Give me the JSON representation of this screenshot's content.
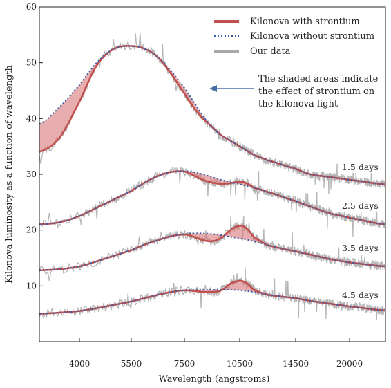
{
  "chart_data": {
    "type": "line",
    "xlabel": "Wavelength (angstroms)",
    "ylabel": "Kilonova luminosity as a function of wavelength",
    "ylim": [
      0,
      60
    ],
    "y_ticks": [
      10,
      20,
      30,
      40,
      50,
      60
    ],
    "x_tick_labels": [
      "4000",
      "5500",
      "7500",
      "10500",
      "14500",
      "20000"
    ],
    "x_tick_values": [
      4000,
      5500,
      7500,
      10500,
      14500,
      20000
    ],
    "x_anchor_values": [
      3200,
      4000,
      5500,
      7500,
      10500,
      14500,
      20000,
      23000
    ],
    "x_range": [
      3200,
      23000
    ],
    "grid": false,
    "legend_position": "top-right",
    "legend": [
      {
        "label": "Kilonova with strontium",
        "color": "#c0504d",
        "style": "solid"
      },
      {
        "label": "Kilonova without strontium",
        "color": "#3b5ca8",
        "style": "dotted"
      },
      {
        "label": "Our data",
        "color": "#a9a9a9",
        "style": "solid"
      }
    ],
    "annotation": {
      "lines": [
        "The shaded areas indicate",
        "the effect of strontium on",
        "the kilonova light"
      ],
      "arrow_color": "#4a6fa5"
    },
    "series_style": {
      "with_color": "#c0504d",
      "without_color": "#3b5ca8",
      "data_color": "#a9a9a9",
      "shade_color": "#d9787a"
    },
    "epochs": [
      {
        "label": "1.5 days",
        "without": [
          [
            3200,
            39
          ],
          [
            3600,
            42
          ],
          [
            4000,
            46
          ],
          [
            4500,
            50
          ],
          [
            5000,
            52.5
          ],
          [
            5500,
            53
          ],
          [
            6000,
            52.5
          ],
          [
            6500,
            51
          ],
          [
            7000,
            48.5
          ],
          [
            7500,
            45.5
          ],
          [
            8000,
            43
          ],
          [
            8500,
            40.5
          ],
          [
            9000,
            38.5
          ],
          [
            9500,
            37
          ],
          [
            10000,
            36
          ],
          [
            10500,
            35
          ],
          [
            11500,
            33.5
          ],
          [
            12500,
            32.5
          ],
          [
            14500,
            31
          ],
          [
            16000,
            30
          ],
          [
            18000,
            29.5
          ],
          [
            20000,
            29
          ],
          [
            23000,
            28.2
          ]
        ],
        "with": [
          [
            3200,
            34
          ],
          [
            3600,
            36.5
          ],
          [
            4000,
            43
          ],
          [
            4500,
            49.5
          ],
          [
            5000,
            52.5
          ],
          [
            5500,
            53
          ],
          [
            6000,
            52.5
          ],
          [
            6500,
            51
          ],
          [
            7000,
            48
          ],
          [
            7500,
            44.5
          ],
          [
            8000,
            42
          ],
          [
            8500,
            40
          ],
          [
            9000,
            38.5
          ],
          [
            9500,
            37
          ],
          [
            10000,
            36
          ],
          [
            10500,
            35
          ],
          [
            11500,
            33.5
          ],
          [
            12500,
            32.5
          ],
          [
            14500,
            31
          ],
          [
            16000,
            30
          ],
          [
            18000,
            29.5
          ],
          [
            20000,
            29
          ],
          [
            23000,
            28.2
          ]
        ]
      },
      {
        "label": "2.5 days",
        "without": [
          [
            3200,
            21
          ],
          [
            3600,
            21.4
          ],
          [
            4000,
            22.5
          ],
          [
            4500,
            24
          ],
          [
            5000,
            25.5
          ],
          [
            5500,
            27
          ],
          [
            6000,
            28.5
          ],
          [
            6500,
            29.7
          ],
          [
            7000,
            30.4
          ],
          [
            7500,
            30.6
          ],
          [
            8000,
            30.4
          ],
          [
            8500,
            30
          ],
          [
            9000,
            29.5
          ],
          [
            9500,
            29
          ],
          [
            10000,
            28.6
          ],
          [
            10500,
            28.2
          ],
          [
            11500,
            27.6
          ],
          [
            12500,
            26.8
          ],
          [
            14500,
            25.2
          ],
          [
            16000,
            24.2
          ],
          [
            18000,
            23
          ],
          [
            20000,
            22.2
          ],
          [
            23000,
            21
          ]
        ],
        "with": [
          [
            3200,
            21
          ],
          [
            3600,
            21.4
          ],
          [
            4000,
            22.5
          ],
          [
            4500,
            24
          ],
          [
            5000,
            25.5
          ],
          [
            5500,
            27
          ],
          [
            6000,
            28.5
          ],
          [
            6500,
            29.7
          ],
          [
            7000,
            30.4
          ],
          [
            7500,
            30.5
          ],
          [
            8000,
            29.8
          ],
          [
            8500,
            29
          ],
          [
            9000,
            28.5
          ],
          [
            9500,
            28.3
          ],
          [
            10000,
            28.4
          ],
          [
            10500,
            28.7
          ],
          [
            11000,
            28.4
          ],
          [
            11500,
            27.6
          ],
          [
            12500,
            26.8
          ],
          [
            14500,
            25.2
          ],
          [
            16000,
            24.2
          ],
          [
            18000,
            23
          ],
          [
            20000,
            22.2
          ],
          [
            23000,
            21
          ]
        ]
      },
      {
        "label": "3.5 days",
        "without": [
          [
            3200,
            12.8
          ],
          [
            3600,
            13
          ],
          [
            4000,
            13.5
          ],
          [
            4500,
            14.4
          ],
          [
            5000,
            15.4
          ],
          [
            5500,
            16.4
          ],
          [
            6000,
            17.4
          ],
          [
            6500,
            18.2
          ],
          [
            7000,
            18.9
          ],
          [
            7500,
            19.3
          ],
          [
            8000,
            19.4
          ],
          [
            8500,
            19.4
          ],
          [
            9000,
            19.3
          ],
          [
            9500,
            19.1
          ],
          [
            10000,
            18.8
          ],
          [
            10500,
            18.5
          ],
          [
            11500,
            18
          ],
          [
            12500,
            17.3
          ],
          [
            14500,
            16.2
          ],
          [
            16000,
            15.6
          ],
          [
            18000,
            14.8
          ],
          [
            20000,
            14.2
          ],
          [
            23000,
            13.5
          ]
        ],
        "with": [
          [
            3200,
            12.8
          ],
          [
            3600,
            13
          ],
          [
            4000,
            13.5
          ],
          [
            4500,
            14.4
          ],
          [
            5000,
            15.4
          ],
          [
            5500,
            16.4
          ],
          [
            6000,
            17.4
          ],
          [
            6500,
            18.2
          ],
          [
            7000,
            18.9
          ],
          [
            7500,
            19.2
          ],
          [
            8000,
            18.8
          ],
          [
            8500,
            18.2
          ],
          [
            9000,
            18
          ],
          [
            9500,
            18.6
          ],
          [
            10000,
            20
          ],
          [
            10500,
            20.8
          ],
          [
            11000,
            20.3
          ],
          [
            11500,
            18.8
          ],
          [
            12500,
            17.3
          ],
          [
            14500,
            16.2
          ],
          [
            16000,
            15.6
          ],
          [
            18000,
            14.8
          ],
          [
            20000,
            14.2
          ],
          [
            23000,
            13.5
          ]
        ]
      },
      {
        "label": "4.5 days",
        "without": [
          [
            3200,
            5
          ],
          [
            3600,
            5.2
          ],
          [
            4000,
            5.5
          ],
          [
            4500,
            6
          ],
          [
            5000,
            6.6
          ],
          [
            5500,
            7.2
          ],
          [
            6000,
            7.8
          ],
          [
            6500,
            8.4
          ],
          [
            7000,
            8.9
          ],
          [
            7500,
            9.2
          ],
          [
            8000,
            9.3
          ],
          [
            8500,
            9.3
          ],
          [
            9000,
            9.3
          ],
          [
            9500,
            9.3
          ],
          [
            10000,
            9.3
          ],
          [
            10500,
            9.2
          ],
          [
            11500,
            8.9
          ],
          [
            12500,
            8.4
          ],
          [
            14500,
            7.8
          ],
          [
            16000,
            7.3
          ],
          [
            18000,
            6.8
          ],
          [
            20000,
            6.3
          ],
          [
            23000,
            5.6
          ]
        ],
        "with": [
          [
            3200,
            5
          ],
          [
            3600,
            5.2
          ],
          [
            4000,
            5.5
          ],
          [
            4500,
            6
          ],
          [
            5000,
            6.6
          ],
          [
            5500,
            7.2
          ],
          [
            6000,
            7.8
          ],
          [
            6500,
            8.4
          ],
          [
            7000,
            8.9
          ],
          [
            7500,
            9.2
          ],
          [
            8000,
            9.1
          ],
          [
            8500,
            8.9
          ],
          [
            9000,
            8.9
          ],
          [
            9500,
            9.2
          ],
          [
            10000,
            10.4
          ],
          [
            10500,
            10.9
          ],
          [
            11000,
            10.5
          ],
          [
            11500,
            9.3
          ],
          [
            12500,
            8.4
          ],
          [
            14500,
            7.8
          ],
          [
            16000,
            7.3
          ],
          [
            18000,
            6.8
          ],
          [
            20000,
            6.3
          ],
          [
            23000,
            5.6
          ]
        ]
      }
    ]
  }
}
